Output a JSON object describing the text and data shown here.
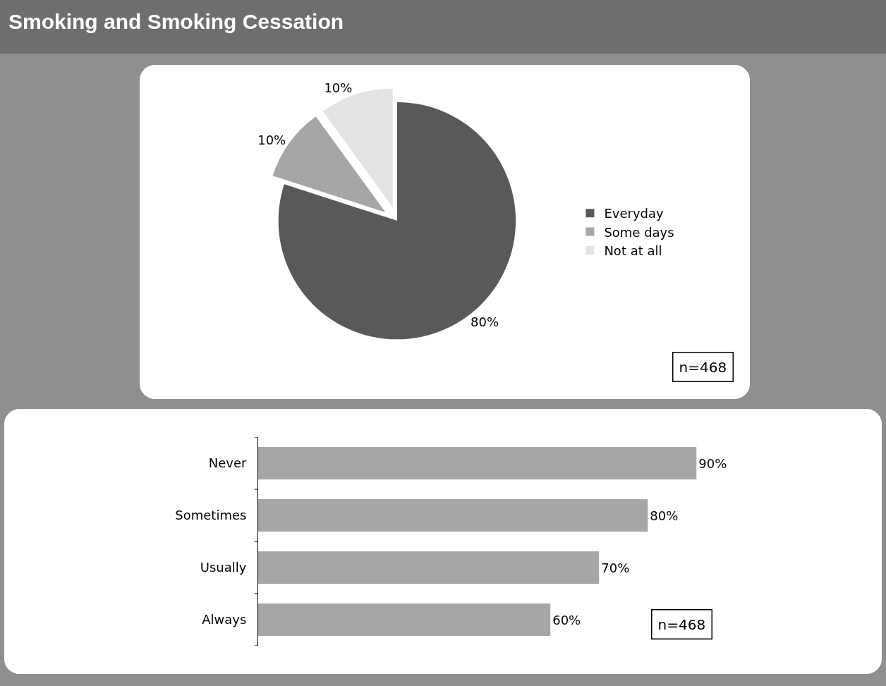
{
  "chart_data": [
    {
      "type": "pie",
      "title": "Smoking and Smoking Cessation",
      "categories": [
        "Everyday",
        "Some days",
        "Not at all"
      ],
      "values": [
        80,
        10,
        10
      ],
      "colors": [
        "#595959",
        "#a6a6a6",
        "#e3e3e3"
      ],
      "value_labels": [
        "80%",
        "10%",
        "10%"
      ],
      "legend": "right",
      "annotations": [
        "n=468"
      ]
    },
    {
      "type": "bar",
      "orientation": "horizontal",
      "categories": [
        "Never",
        "Sometimes",
        "Usually",
        "Always"
      ],
      "values": [
        90,
        80,
        70,
        60
      ],
      "color": "#a6a6a6",
      "value_labels": [
        "90%",
        "80%",
        "70%",
        "60%"
      ],
      "annotations": [
        "n=468"
      ]
    }
  ]
}
